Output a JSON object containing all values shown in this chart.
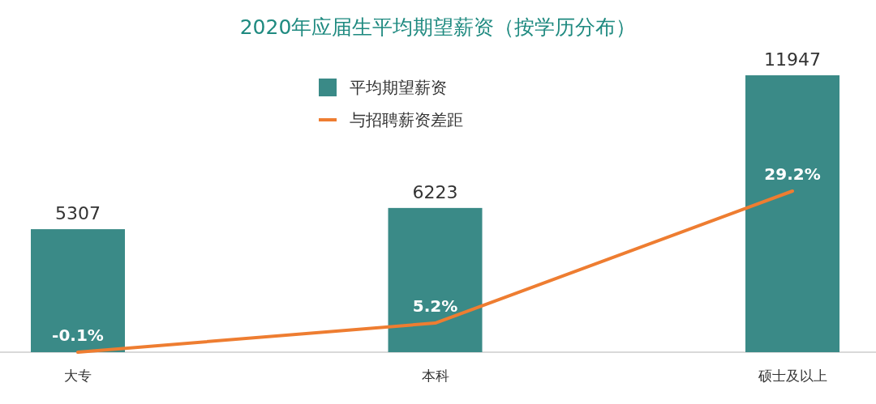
{
  "chart_data": {
    "type": "bar",
    "title": "2020年应届生平均期望薪资（按学历分布）",
    "categories": [
      "大专",
      "本科",
      "硕士及以上"
    ],
    "series": [
      {
        "name": "平均期望薪资",
        "color": "#3a8a87",
        "values": [
          5307,
          6223,
          11947
        ]
      },
      {
        "name": "与招聘薪资差距",
        "type": "line",
        "axis": "y2",
        "color": "#ee7d31",
        "values": [
          -0.1,
          5.2,
          29.2
        ],
        "value_labels": [
          "-0.1%",
          "5.2%",
          "29.2%"
        ]
      }
    ],
    "tick_labels": "x",
    "legend": "top",
    "data_labels": true
  }
}
